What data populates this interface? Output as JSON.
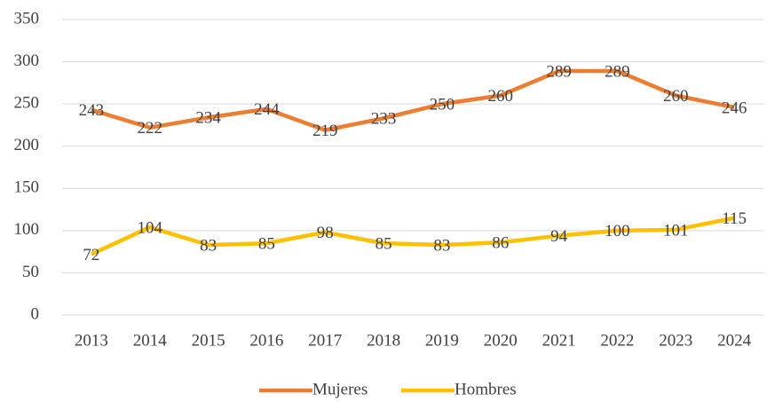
{
  "chart_data": {
    "type": "line",
    "categories": [
      "2013",
      "2014",
      "2015",
      "2016",
      "2017",
      "2018",
      "2019",
      "2020",
      "2021",
      "2022",
      "2023",
      "2024"
    ],
    "series": [
      {
        "name": "Mujeres",
        "color": "#ED7D31",
        "values": [
          243,
          222,
          234,
          244,
          219,
          233,
          250,
          260,
          289,
          289,
          260,
          246
        ]
      },
      {
        "name": "Hombres",
        "color": "#FFC000",
        "values": [
          72,
          104,
          83,
          85,
          98,
          85,
          83,
          86,
          94,
          100,
          101,
          115
        ]
      }
    ],
    "ylim": [
      0,
      350
    ],
    "yticks": [
      0,
      50,
      100,
      150,
      200,
      250,
      300,
      350
    ],
    "grid": true,
    "legend": "bottom"
  }
}
